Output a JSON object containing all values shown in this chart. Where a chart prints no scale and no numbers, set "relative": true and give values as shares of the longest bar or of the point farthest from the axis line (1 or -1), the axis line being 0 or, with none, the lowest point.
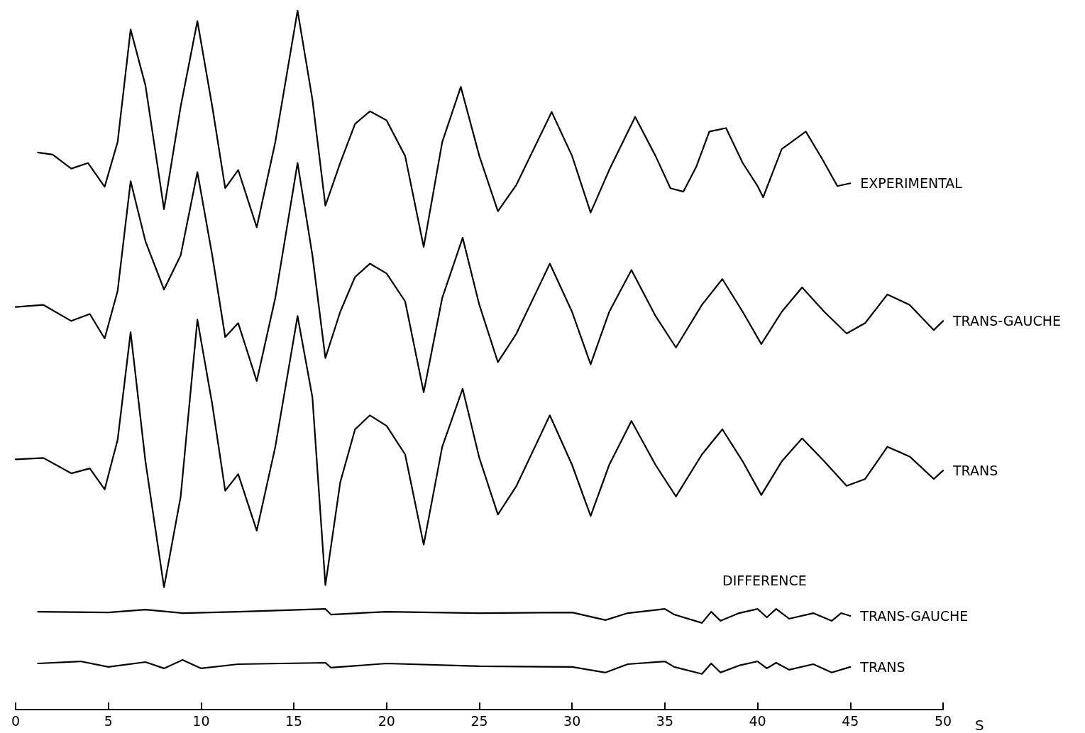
{
  "chart_data": {
    "type": "line",
    "relative": true,
    "xlabel": "S",
    "xlim": [
      0,
      50
    ],
    "xticks": [
      0,
      5,
      10,
      15,
      20,
      25,
      30,
      35,
      40,
      45,
      50
    ],
    "tick_labels": "x",
    "grid": false,
    "legend": false,
    "marker": "none",
    "line_style": "solid",
    "annotations": [
      "DIFFERENCE"
    ],
    "series": [
      {
        "name": "EXPERIMENTAL",
        "color": "#000000",
        "x": [
          1.2,
          2,
          3,
          3.9,
          4.8,
          5.5,
          6.2,
          7,
          8,
          8.9,
          9.8,
          10.6,
          11.3,
          12,
          13,
          14,
          15.2,
          16,
          16.7,
          17.5,
          18.3,
          19.1,
          20,
          21,
          22,
          23,
          24,
          25,
          26,
          27,
          28.9,
          30,
          31,
          32,
          33.4,
          34.5,
          35.3,
          36,
          36.7,
          37.4,
          38.3,
          39.2,
          40,
          40.3,
          41.3,
          42.6,
          43.5,
          44.3,
          45
        ],
        "values": [
          0.797,
          0.794,
          0.774,
          0.782,
          0.748,
          0.812,
          0.973,
          0.893,
          0.716,
          0.863,
          0.985,
          0.863,
          0.746,
          0.772,
          0.69,
          0.812,
          1.0,
          0.873,
          0.721,
          0.782,
          0.838,
          0.856,
          0.843,
          0.792,
          0.662,
          0.812,
          0.891,
          0.792,
          0.713,
          0.751,
          0.855,
          0.792,
          0.711,
          0.772,
          0.848,
          0.792,
          0.746,
          0.741,
          0.777,
          0.827,
          0.832,
          0.782,
          0.749,
          0.733,
          0.802,
          0.827,
          0.787,
          0.749,
          0.753
        ]
      },
      {
        "name": "TRANS-GAUCHE",
        "color": "#000000",
        "x": [
          0,
          1.5,
          3,
          4,
          4.8,
          5.5,
          6.2,
          7,
          8,
          8.9,
          9.8,
          10.6,
          11.3,
          12,
          13,
          14,
          15.2,
          16,
          16.7,
          17.5,
          18.3,
          19.1,
          20,
          21,
          22,
          23,
          24.1,
          25,
          26,
          27,
          28.8,
          30,
          31,
          32,
          33.2,
          34.5,
          35.6,
          37,
          38.1,
          39.2,
          40.2,
          41.3,
          42.4,
          43.6,
          44.8,
          45.8,
          47,
          48.2,
          49.5,
          50
        ],
        "values": [
          0.576,
          0.579,
          0.556,
          0.566,
          0.531,
          0.599,
          0.756,
          0.67,
          0.601,
          0.65,
          0.769,
          0.65,
          0.533,
          0.553,
          0.47,
          0.589,
          0.782,
          0.65,
          0.503,
          0.569,
          0.619,
          0.638,
          0.624,
          0.584,
          0.454,
          0.589,
          0.675,
          0.579,
          0.497,
          0.538,
          0.638,
          0.569,
          0.494,
          0.569,
          0.629,
          0.563,
          0.518,
          0.579,
          0.616,
          0.569,
          0.523,
          0.569,
          0.604,
          0.569,
          0.538,
          0.553,
          0.594,
          0.579,
          0.543,
          0.556
        ]
      },
      {
        "name": "TRANS",
        "color": "#000000",
        "x": [
          0,
          1.5,
          3,
          4,
          4.8,
          5.5,
          6.2,
          7,
          8,
          8.9,
          9.8,
          10.6,
          11.3,
          12,
          13,
          14,
          15.2,
          16,
          16.7,
          17.5,
          18.3,
          19.1,
          20,
          21,
          22,
          23,
          24.1,
          25,
          26,
          27,
          28.8,
          30,
          31,
          32,
          33.2,
          34.5,
          35.6,
          37,
          38.1,
          39.2,
          40.2,
          41.3,
          42.4,
          43.6,
          44.8,
          45.8,
          47,
          48.2,
          49.5,
          50
        ],
        "values": [
          0.358,
          0.36,
          0.338,
          0.345,
          0.315,
          0.386,
          0.54,
          0.355,
          0.175,
          0.305,
          0.558,
          0.437,
          0.313,
          0.337,
          0.256,
          0.376,
          0.563,
          0.447,
          0.178,
          0.325,
          0.401,
          0.421,
          0.406,
          0.365,
          0.236,
          0.376,
          0.459,
          0.36,
          0.279,
          0.32,
          0.421,
          0.35,
          0.277,
          0.35,
          0.413,
          0.35,
          0.305,
          0.365,
          0.401,
          0.355,
          0.307,
          0.355,
          0.388,
          0.355,
          0.32,
          0.33,
          0.376,
          0.362,
          0.33,
          0.342
        ]
      },
      {
        "name": "TRANS-GAUCHE",
        "color": "#000000",
        "x": [
          1.2,
          5,
          7,
          9,
          12,
          16.7,
          17,
          20,
          25,
          30,
          31.8,
          33,
          35,
          35.5,
          37,
          37.5,
          38,
          39,
          40,
          40.5,
          41,
          41.7,
          43,
          44,
          44.5,
          45
        ],
        "values": [
          0.14,
          0.139,
          0.143,
          0.138,
          0.14,
          0.144,
          0.136,
          0.14,
          0.138,
          0.139,
          0.128,
          0.138,
          0.144,
          0.136,
          0.124,
          0.14,
          0.127,
          0.138,
          0.144,
          0.132,
          0.144,
          0.13,
          0.138,
          0.127,
          0.138,
          0.134
        ]
      },
      {
        "name": "TRANS",
        "color": "#000000",
        "x": [
          1.2,
          3.5,
          5,
          7,
          8,
          9,
          10,
          12,
          16.7,
          17,
          20,
          25,
          30,
          31.8,
          33,
          35,
          35.5,
          37,
          37.5,
          38,
          39,
          40,
          40.5,
          41,
          41.7,
          43,
          44,
          45
        ],
        "values": [
          0.066,
          0.069,
          0.061,
          0.068,
          0.059,
          0.071,
          0.059,
          0.065,
          0.067,
          0.06,
          0.066,
          0.062,
          0.061,
          0.053,
          0.065,
          0.069,
          0.061,
          0.051,
          0.066,
          0.053,
          0.063,
          0.069,
          0.059,
          0.067,
          0.057,
          0.065,
          0.053,
          0.061
        ]
      }
    ]
  }
}
